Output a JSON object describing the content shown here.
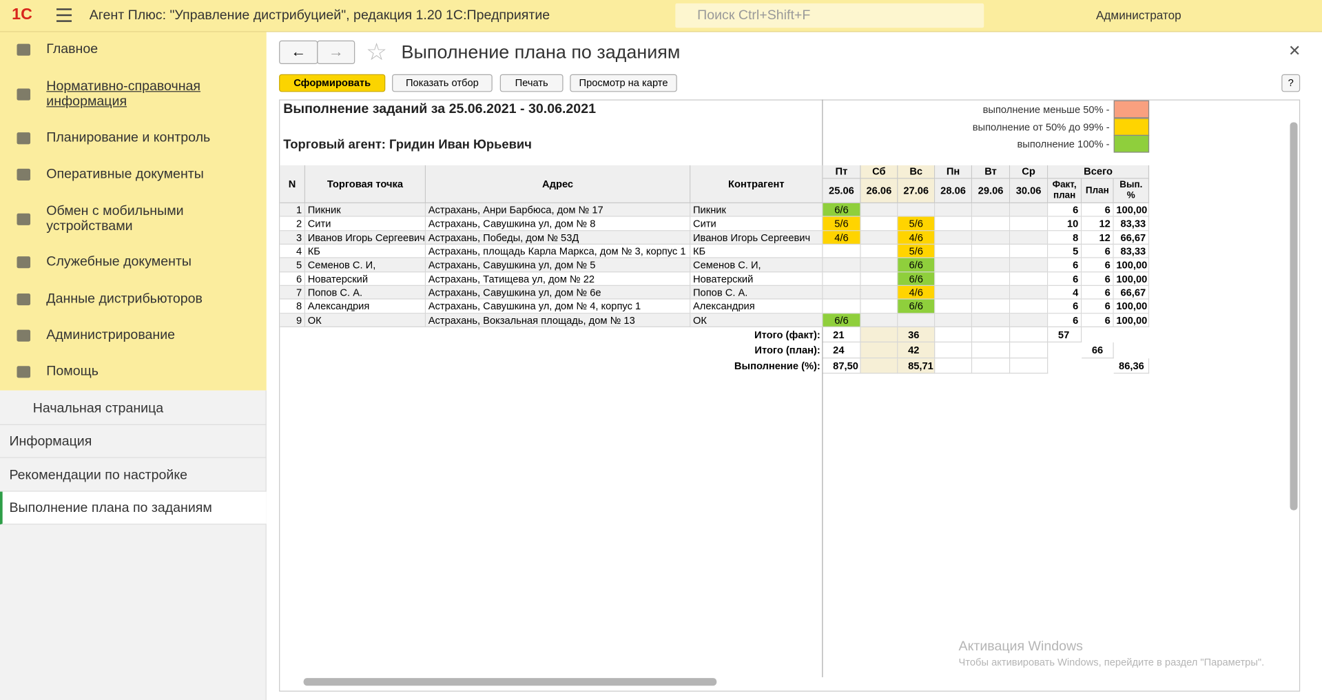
{
  "titlebar": {
    "logo": "1С",
    "app_title": "Агент Плюс: \"Управление дистрибуцией\", редакция 1.20 1С:Предприятие",
    "search_placeholder": "Поиск Ctrl+Shift+F",
    "user": "Администратор"
  },
  "sidebar": {
    "sections": [
      "Главное",
      "Нормативно-справочная информация",
      "Планирование и контроль",
      "Оперативные документы",
      "Обмен с мобильными устройствами",
      "Служебные документы",
      "Данные дистрибьюторов",
      "Администрирование",
      "Помощь"
    ],
    "open_windows": [
      "Начальная страница",
      "Информация",
      "Рекомендации по настройке",
      "Выполнение плана по заданиям"
    ]
  },
  "form": {
    "title": "Выполнение плана по заданиям",
    "buttons": [
      "Сформировать",
      "Показать отбор",
      "Печать",
      "Просмотр на карте"
    ],
    "help": "?"
  },
  "report": {
    "heading": "Выполнение заданий за 25.06.2021 - 30.06.2021",
    "agent": "Торговый агент: Гридин Иван Юрьевич",
    "legend": [
      {
        "label": "выполнение меньше 50% -",
        "color": "#f9a07f"
      },
      {
        "label": "выполнение от 50% до 99% -",
        "color": "#ffd400"
      },
      {
        "label": "выполнение 100% -",
        "color": "#8fcf3c"
      }
    ],
    "columns": {
      "n": "N",
      "point": "Торговая точка",
      "address": "Адрес",
      "counterparty": "Контрагент",
      "days": [
        {
          "name": "Пт",
          "date": "25.06"
        },
        {
          "name": "Сб",
          "date": "26.06"
        },
        {
          "name": "Вс",
          "date": "27.06"
        },
        {
          "name": "Пн",
          "date": "28.06"
        },
        {
          "name": "Вт",
          "date": "29.06"
        },
        {
          "name": "Ср",
          "date": "30.06"
        }
      ],
      "total": "Всего",
      "total_cols": [
        "Факт, план",
        "План",
        "Вып. %"
      ]
    },
    "rows": [
      {
        "n": 1,
        "point": "Пикник",
        "address": "Астрахань, Анри Барбюса, дом № 17",
        "counterparty": "Пикник",
        "days": [
          "6/6",
          null,
          null,
          null,
          null,
          null
        ],
        "fact": 6,
        "plan": 6,
        "pct": "100,00"
      },
      {
        "n": 2,
        "point": "Сити",
        "address": "Астрахань, Савушкина ул, дом № 8",
        "counterparty": "Сити",
        "days": [
          "5/6",
          null,
          "5/6",
          null,
          null,
          null
        ],
        "fact": 10,
        "plan": 12,
        "pct": "83,33"
      },
      {
        "n": 3,
        "point": "Иванов Игорь Сергеевич",
        "address": "Астрахань, Победы, дом № 53Д",
        "counterparty": "Иванов Игорь Сергеевич",
        "days": [
          "4/6",
          null,
          "4/6",
          null,
          null,
          null
        ],
        "fact": 8,
        "plan": 12,
        "pct": "66,67"
      },
      {
        "n": 4,
        "point": "КБ",
        "address": "Астрахань, площадь Карла Маркса, дом № 3, корпус 1",
        "counterparty": "КБ",
        "days": [
          null,
          null,
          "5/6",
          null,
          null,
          null
        ],
        "fact": 5,
        "plan": 6,
        "pct": "83,33"
      },
      {
        "n": 5,
        "point": "Семенов С. И,",
        "address": "Астрахань, Савушкина ул, дом № 5",
        "counterparty": "Семенов С. И,",
        "days": [
          null,
          null,
          "6/6",
          null,
          null,
          null
        ],
        "fact": 6,
        "plan": 6,
        "pct": "100,00"
      },
      {
        "n": 6,
        "point": "Новатерский",
        "address": "Астрахань, Татищева ул, дом № 22",
        "counterparty": "Новатерский",
        "days": [
          null,
          null,
          "6/6",
          null,
          null,
          null
        ],
        "fact": 6,
        "plan": 6,
        "pct": "100,00"
      },
      {
        "n": 7,
        "point": "Попов С. А.",
        "address": "Астрахань, Савушкина ул, дом № 6е",
        "counterparty": "Попов С. А.",
        "days": [
          null,
          null,
          "4/6",
          null,
          null,
          null
        ],
        "fact": 4,
        "plan": 6,
        "pct": "66,67"
      },
      {
        "n": 8,
        "point": "Александрия",
        "address": "Астрахань, Савушкина ул, дом № 4, корпус 1",
        "counterparty": "Александрия",
        "days": [
          null,
          null,
          "6/6",
          null,
          null,
          null
        ],
        "fact": 6,
        "plan": 6,
        "pct": "100,00"
      },
      {
        "n": 9,
        "point": "ОК",
        "address": "Астрахань, Вокзальная площадь, дом № 13",
        "counterparty": "ОК",
        "days": [
          "6/6",
          null,
          null,
          null,
          null,
          null
        ],
        "fact": 6,
        "plan": 6,
        "pct": "100,00"
      }
    ],
    "totals": [
      {
        "label": "Итого (факт):",
        "days": [
          21,
          null,
          36,
          null,
          null,
          null
        ],
        "total": 57
      },
      {
        "label": "Итого (план):",
        "days": [
          24,
          null,
          42,
          null,
          null,
          null
        ],
        "total": 66
      },
      {
        "label": "Выполнение (%):",
        "days": [
          "87,50",
          null,
          "85,71",
          null,
          null,
          null
        ],
        "total": "86,36"
      }
    ]
  },
  "watermark": {
    "title": "Активация Windows",
    "text": "Чтобы активировать Windows, перейдите в раздел \"Параметры\"."
  }
}
